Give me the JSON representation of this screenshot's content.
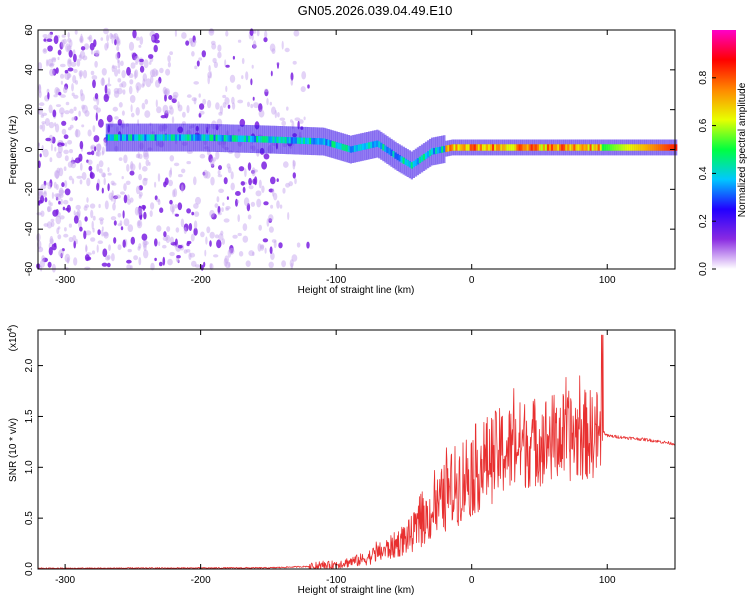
{
  "title": "GN05.2026.039.04.49.E10",
  "chart_data": [
    {
      "type": "heatmap",
      "xlabel": "Height of straight line (km)",
      "ylabel": "Frequency (Hz)",
      "xlim": [
        -320,
        150
      ],
      "ylim": [
        -60,
        60
      ],
      "xticks": [
        -300,
        -200,
        -100,
        0,
        100
      ],
      "yticks": [
        -60,
        -40,
        -20,
        0,
        20,
        40,
        60
      ],
      "colorbar": {
        "label": "Normalized spectral amplitude",
        "range": [
          0.0,
          1.0
        ],
        "ticks": [
          "0.0",
          "0.2",
          "0.4",
          "0.6",
          "0.8"
        ],
        "colormap": [
          "#ffffff",
          "#8a2be2",
          "#2200ff",
          "#00c8ff",
          "#00ff40",
          "#e8ff00",
          "#ff8800",
          "#ff0000",
          "#ff00c8"
        ]
      },
      "ridge": {
        "x": [
          -260,
          -200,
          -150,
          -110,
          -90,
          -70,
          -55,
          -45,
          -30,
          -15,
          0,
          40,
          90,
          150
        ],
        "frequency": [
          6,
          6,
          5,
          4,
          0,
          3,
          -4,
          -8,
          -1,
          1,
          1,
          1,
          1,
          1
        ]
      },
      "noise_region_x": [
        -320,
        -120
      ]
    },
    {
      "type": "line",
      "xlabel": "Height of straight line (km)",
      "ylabel": "SNR (10 * v/v)",
      "yscale_label": "(x10",
      "yscale_exp": "4",
      "xlim": [
        -320,
        150
      ],
      "ylim": [
        0,
        2.35
      ],
      "xticks": [
        -300,
        -200,
        -100,
        0,
        100
      ],
      "yticks": [
        "0.0",
        "0.5",
        "1.0",
        "1.5",
        "2.0"
      ],
      "series_color": "#e83030",
      "envelope": {
        "x": [
          -320,
          -150,
          -120,
          -100,
          -80,
          -60,
          -45,
          -35,
          -25,
          -15,
          -5,
          5,
          20,
          40,
          60,
          80,
          95,
          100,
          130,
          150
        ],
        "y": [
          0.0,
          0.005,
          0.02,
          0.05,
          0.1,
          0.22,
          0.35,
          0.5,
          0.65,
          0.82,
          0.95,
          1.05,
          1.18,
          1.28,
          1.33,
          1.36,
          1.38,
          1.31,
          1.27,
          1.23
        ]
      }
    }
  ]
}
